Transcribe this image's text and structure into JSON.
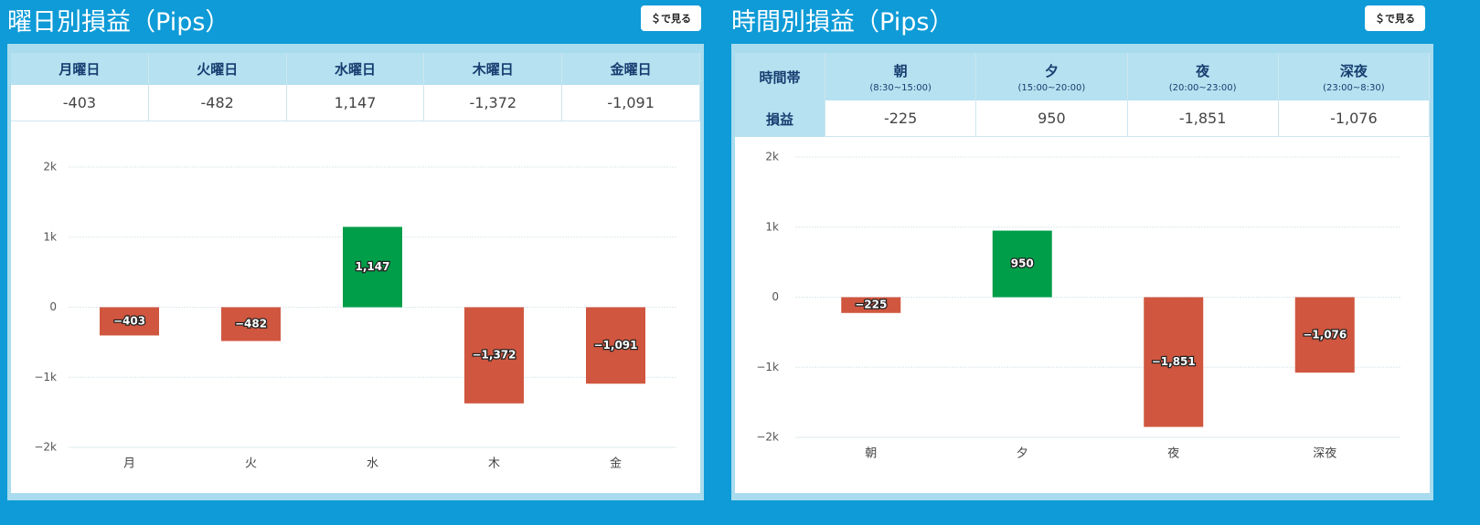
{
  "panels": [
    {
      "title": "曜日別損益（Pips）",
      "button": "＄で見る",
      "table": {
        "header": [
          "月曜日",
          "火曜日",
          "水曜日",
          "木曜日",
          "金曜日"
        ],
        "rows": [
          [
            "-403",
            "-482",
            "1,147",
            "-1,372",
            "-1,091"
          ]
        ]
      }
    },
    {
      "title": "時間別損益（Pips）",
      "button": "＄で見る",
      "table": {
        "corner": "時間帯",
        "header": [
          {
            "label": "朝",
            "sub": "(8:30~15:00)"
          },
          {
            "label": "夕",
            "sub": "(15:00~20:00)"
          },
          {
            "label": "夜",
            "sub": "(20:00~23:00)"
          },
          {
            "label": "深夜",
            "sub": "(23:00~8:30)"
          }
        ],
        "rows": [
          {
            "label": "損益",
            "cells": [
              "-225",
              "950",
              "-1,851",
              "-1,076"
            ]
          }
        ]
      }
    }
  ],
  "chart_data": [
    {
      "type": "bar",
      "categories": [
        "月",
        "火",
        "水",
        "木",
        "金"
      ],
      "values": [
        -403,
        -482,
        1147,
        -1372,
        -1091
      ],
      "value_labels": [
        "−403",
        "−482",
        "1,147",
        "−1,372",
        "−1,091"
      ],
      "ylim": [
        -2000,
        2000
      ],
      "yticks": [
        {
          "value": -2000,
          "label": "−2k"
        },
        {
          "value": -1000,
          "label": "−1k"
        },
        0,
        {
          "value": 1000,
          "label": "1k"
        },
        {
          "value": 2000,
          "label": "2k"
        }
      ],
      "positive_color": "#009e49",
      "negative_color": "#d0563f",
      "grid": true
    },
    {
      "type": "bar",
      "categories": [
        "朝",
        "夕",
        "夜",
        "深夜"
      ],
      "values": [
        -225,
        950,
        -1851,
        -1076
      ],
      "value_labels": [
        "−225",
        "950",
        "−1,851",
        "−1,076"
      ],
      "ylim": [
        -2000,
        2000
      ],
      "yticks": [
        {
          "value": -2000,
          "label": "−2k"
        },
        {
          "value": -1000,
          "label": "−1k"
        },
        0,
        {
          "value": 1000,
          "label": "1k"
        },
        {
          "value": 2000,
          "label": "2k"
        }
      ],
      "positive_color": "#009e49",
      "negative_color": "#d0563f",
      "grid": true
    }
  ]
}
